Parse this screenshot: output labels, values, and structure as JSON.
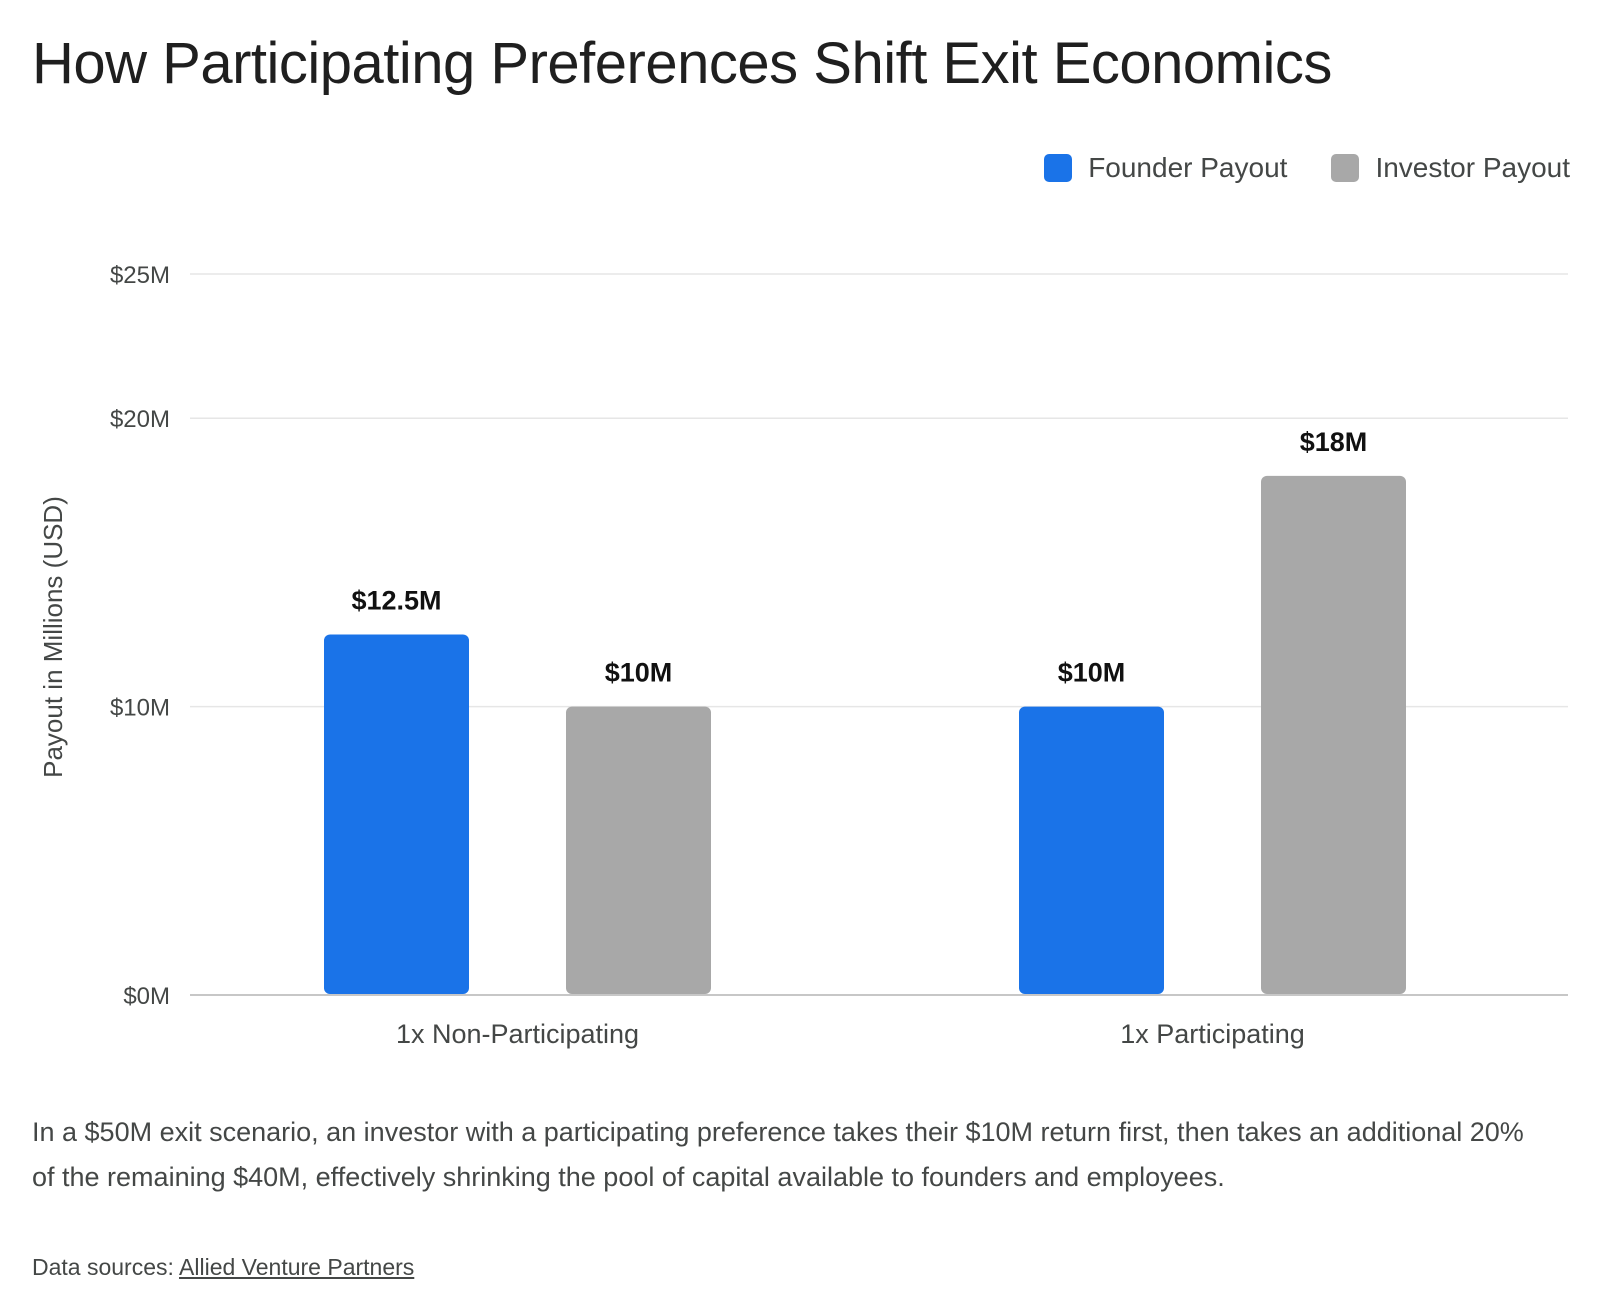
{
  "chart_data": {
    "type": "bar",
    "title": "How Participating Preferences Shift Exit Economics",
    "ylabel": "Payout in Millions (USD)",
    "categories": [
      "1x Non-Participating",
      "1x Participating"
    ],
    "series": [
      {
        "name": "Founder Payout",
        "color": "#1a73e8",
        "values": [
          12.5,
          10
        ],
        "labels": [
          "$12.5M",
          "$10M"
        ]
      },
      {
        "name": "Investor Payout",
        "color": "#a8a8a8",
        "values": [
          10,
          18
        ],
        "labels": [
          "$10M",
          "$18M"
        ]
      }
    ],
    "yticks": [
      0,
      10,
      20,
      25
    ],
    "ytick_labels": [
      "$0M",
      "$10M",
      "$20M",
      "$25M"
    ],
    "ylim": [
      0,
      25
    ],
    "grid": true,
    "legend": "top-right"
  },
  "caption": "In a $50M exit scenario, an investor with a participating preference takes their $10M return first, then takes an additional 20% of the remaining $40M, effectively shrinking the pool of capital available to founders and employees.",
  "sources": {
    "prefix": "Data sources: ",
    "link_text": "Allied Venture Partners"
  }
}
